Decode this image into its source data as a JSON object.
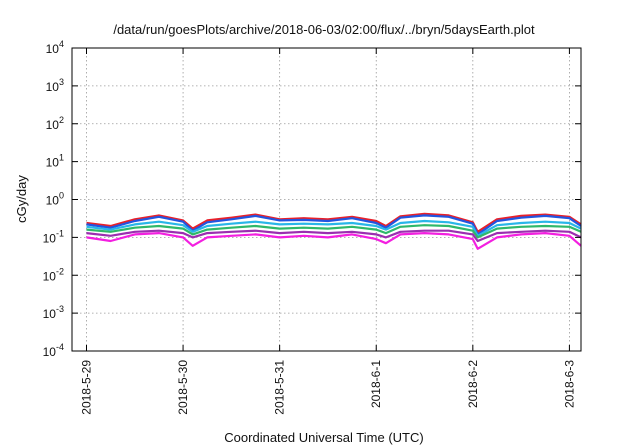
{
  "chart_data": {
    "type": "line",
    "title": "/data/run/goesPlots/archive/2018-06-03/02:00/flux/../bryn/5daysEarth.plot",
    "xlabel": "Coordinated Universal Time (UTC)",
    "ylabel": "cGy/day",
    "yscale": "log",
    "ylim": [
      0.0001,
      10000
    ],
    "xlim": [
      -0.15,
      5.12
    ],
    "grid": true,
    "legend": "none",
    "y_ticks": [
      {
        "base": "10",
        "exp": "-4"
      },
      {
        "base": "10",
        "exp": "-3"
      },
      {
        "base": "10",
        "exp": "-2"
      },
      {
        "base": "10",
        "exp": "-1"
      },
      {
        "base": "10",
        "exp": "0"
      },
      {
        "base": "10",
        "exp": "1"
      },
      {
        "base": "10",
        "exp": "2"
      },
      {
        "base": "10",
        "exp": "3"
      },
      {
        "base": "10",
        "exp": "4"
      }
    ],
    "x_ticks": [
      "2018-5-29",
      "2018-5-30",
      "2018-5-31",
      "2018-6-1",
      "2018-6-2",
      "2018-6-3"
    ],
    "x_days": [
      0,
      1,
      2,
      3,
      4,
      5
    ],
    "x": [
      0,
      0.25,
      0.5,
      0.75,
      1,
      1.1,
      1.25,
      1.5,
      1.75,
      2,
      2.25,
      2.5,
      2.75,
      3,
      3.1,
      3.25,
      3.5,
      3.75,
      4,
      4.05,
      4.25,
      4.5,
      4.75,
      5,
      5.12
    ],
    "series": [
      {
        "color": "#e8202a",
        "values": [
          0.24,
          0.2,
          0.3,
          0.38,
          0.28,
          0.17,
          0.28,
          0.33,
          0.4,
          0.3,
          0.32,
          0.3,
          0.35,
          0.27,
          0.2,
          0.36,
          0.42,
          0.38,
          0.25,
          0.14,
          0.3,
          0.37,
          0.4,
          0.35,
          0.22
        ]
      },
      {
        "color": "#2255e0",
        "values": [
          0.22,
          0.18,
          0.27,
          0.35,
          0.26,
          0.15,
          0.25,
          0.3,
          0.37,
          0.28,
          0.29,
          0.27,
          0.32,
          0.24,
          0.18,
          0.33,
          0.38,
          0.35,
          0.23,
          0.12,
          0.27,
          0.33,
          0.37,
          0.32,
          0.2
        ]
      },
      {
        "color": "#29b6e8",
        "values": [
          0.19,
          0.16,
          0.22,
          0.26,
          0.21,
          0.14,
          0.2,
          0.23,
          0.26,
          0.22,
          0.23,
          0.22,
          0.24,
          0.2,
          0.16,
          0.24,
          0.27,
          0.25,
          0.19,
          0.11,
          0.21,
          0.24,
          0.26,
          0.24,
          0.17
        ]
      },
      {
        "color": "#2fb86a",
        "values": [
          0.16,
          0.14,
          0.18,
          0.2,
          0.17,
          0.12,
          0.16,
          0.18,
          0.2,
          0.17,
          0.18,
          0.17,
          0.19,
          0.16,
          0.13,
          0.19,
          0.21,
          0.2,
          0.15,
          0.1,
          0.17,
          0.19,
          0.2,
          0.19,
          0.14
        ]
      },
      {
        "color": "#9b2db0",
        "values": [
          0.13,
          0.11,
          0.14,
          0.15,
          0.13,
          0.1,
          0.13,
          0.14,
          0.15,
          0.13,
          0.14,
          0.13,
          0.14,
          0.12,
          0.1,
          0.14,
          0.15,
          0.15,
          0.12,
          0.08,
          0.13,
          0.14,
          0.15,
          0.14,
          0.1
        ]
      },
      {
        "color": "#f31fe0",
        "values": [
          0.1,
          0.08,
          0.12,
          0.13,
          0.1,
          0.06,
          0.1,
          0.11,
          0.12,
          0.1,
          0.11,
          0.1,
          0.12,
          0.09,
          0.07,
          0.12,
          0.13,
          0.12,
          0.09,
          0.05,
          0.1,
          0.12,
          0.13,
          0.11,
          0.06
        ]
      }
    ]
  }
}
